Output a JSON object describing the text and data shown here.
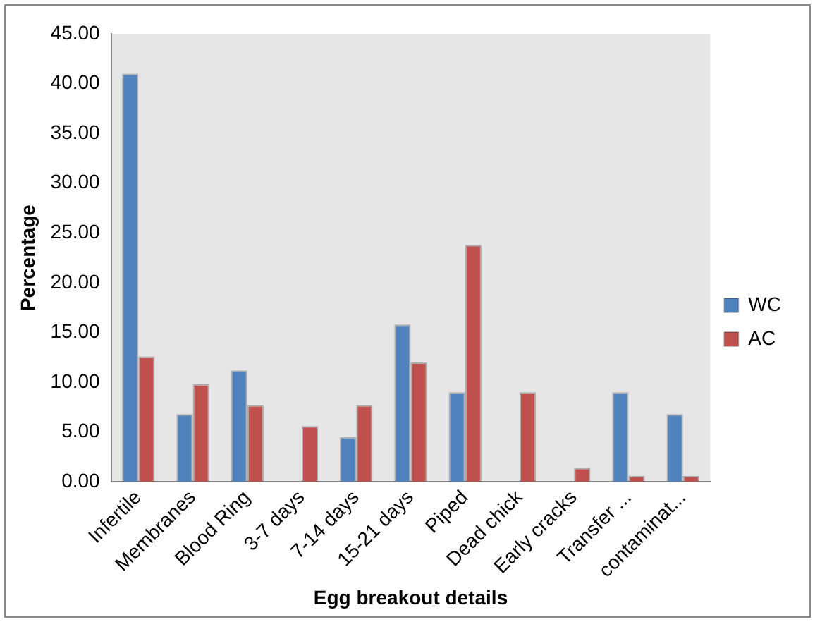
{
  "chart_data": {
    "type": "bar",
    "xlabel": "Egg breakout details",
    "ylabel": "Percentage",
    "categories": [
      "Infertile",
      "Membranes",
      "Blood Ring",
      "3-7 days",
      "7-14 days",
      "15-21 days",
      "Piped",
      "Dead chick",
      "Early cracks",
      "Transfer ...",
      "contaminat..."
    ],
    "series": [
      {
        "name": "WC",
        "color": "#4f81bd",
        "values": [
          41.0,
          6.8,
          11.2,
          null,
          4.5,
          15.8,
          9.0,
          null,
          null,
          9.0,
          6.8
        ]
      },
      {
        "name": "AC",
        "color": "#c0504d",
        "values": [
          12.6,
          9.8,
          7.7,
          5.6,
          7.7,
          12.0,
          23.8,
          9.0,
          1.4,
          0.6,
          0.6
        ]
      }
    ],
    "ylim": [
      0,
      45
    ],
    "yticks": [
      {
        "value": 0,
        "label": "0.00"
      },
      {
        "value": 5,
        "label": "5.00"
      },
      {
        "value": 10,
        "label": "10.00"
      },
      {
        "value": 15,
        "label": "15.00"
      },
      {
        "value": 20,
        "label": "20.00"
      },
      {
        "value": 25,
        "label": "25.00"
      },
      {
        "value": 30,
        "label": "30.00"
      },
      {
        "value": 35,
        "label": "35.00"
      },
      {
        "value": 40,
        "label": "40.00"
      },
      {
        "value": 45,
        "label": "45.00"
      }
    ],
    "grid": false,
    "legend": "right"
  }
}
